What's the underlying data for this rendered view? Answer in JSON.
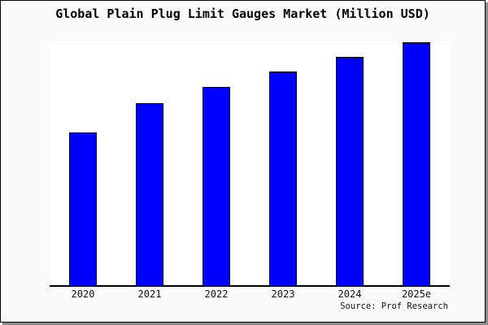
{
  "title": "Global Plain Plug Limit Gauges Market (Million USD)",
  "source_note": "Source: Prof Research",
  "colors": {
    "bar_fill": "#0000ff",
    "bar_border": "#000000",
    "page_background": "#fafafa",
    "plot_background": "#ffffff",
    "axis_line": "#000000",
    "page_border": "#000000",
    "shadow": "#8c8c8c"
  },
  "chart_data": {
    "type": "bar",
    "title": "Global Plain Plug Limit Gauges Market (Million USD)",
    "categories": [
      "2020",
      "2021",
      "2022",
      "2023",
      "2024",
      "2025e"
    ],
    "values": [
      188,
      224,
      244,
      263,
      281,
      299
    ],
    "values_pct_of_max": [
      63,
      75,
      82,
      88,
      94,
      100
    ],
    "xlabel": "",
    "ylabel": "",
    "ylim": [
      0,
      300
    ],
    "y_axis_labels_shown": false,
    "grid": false,
    "legend": false,
    "annotation": "Source: Prof Research"
  }
}
